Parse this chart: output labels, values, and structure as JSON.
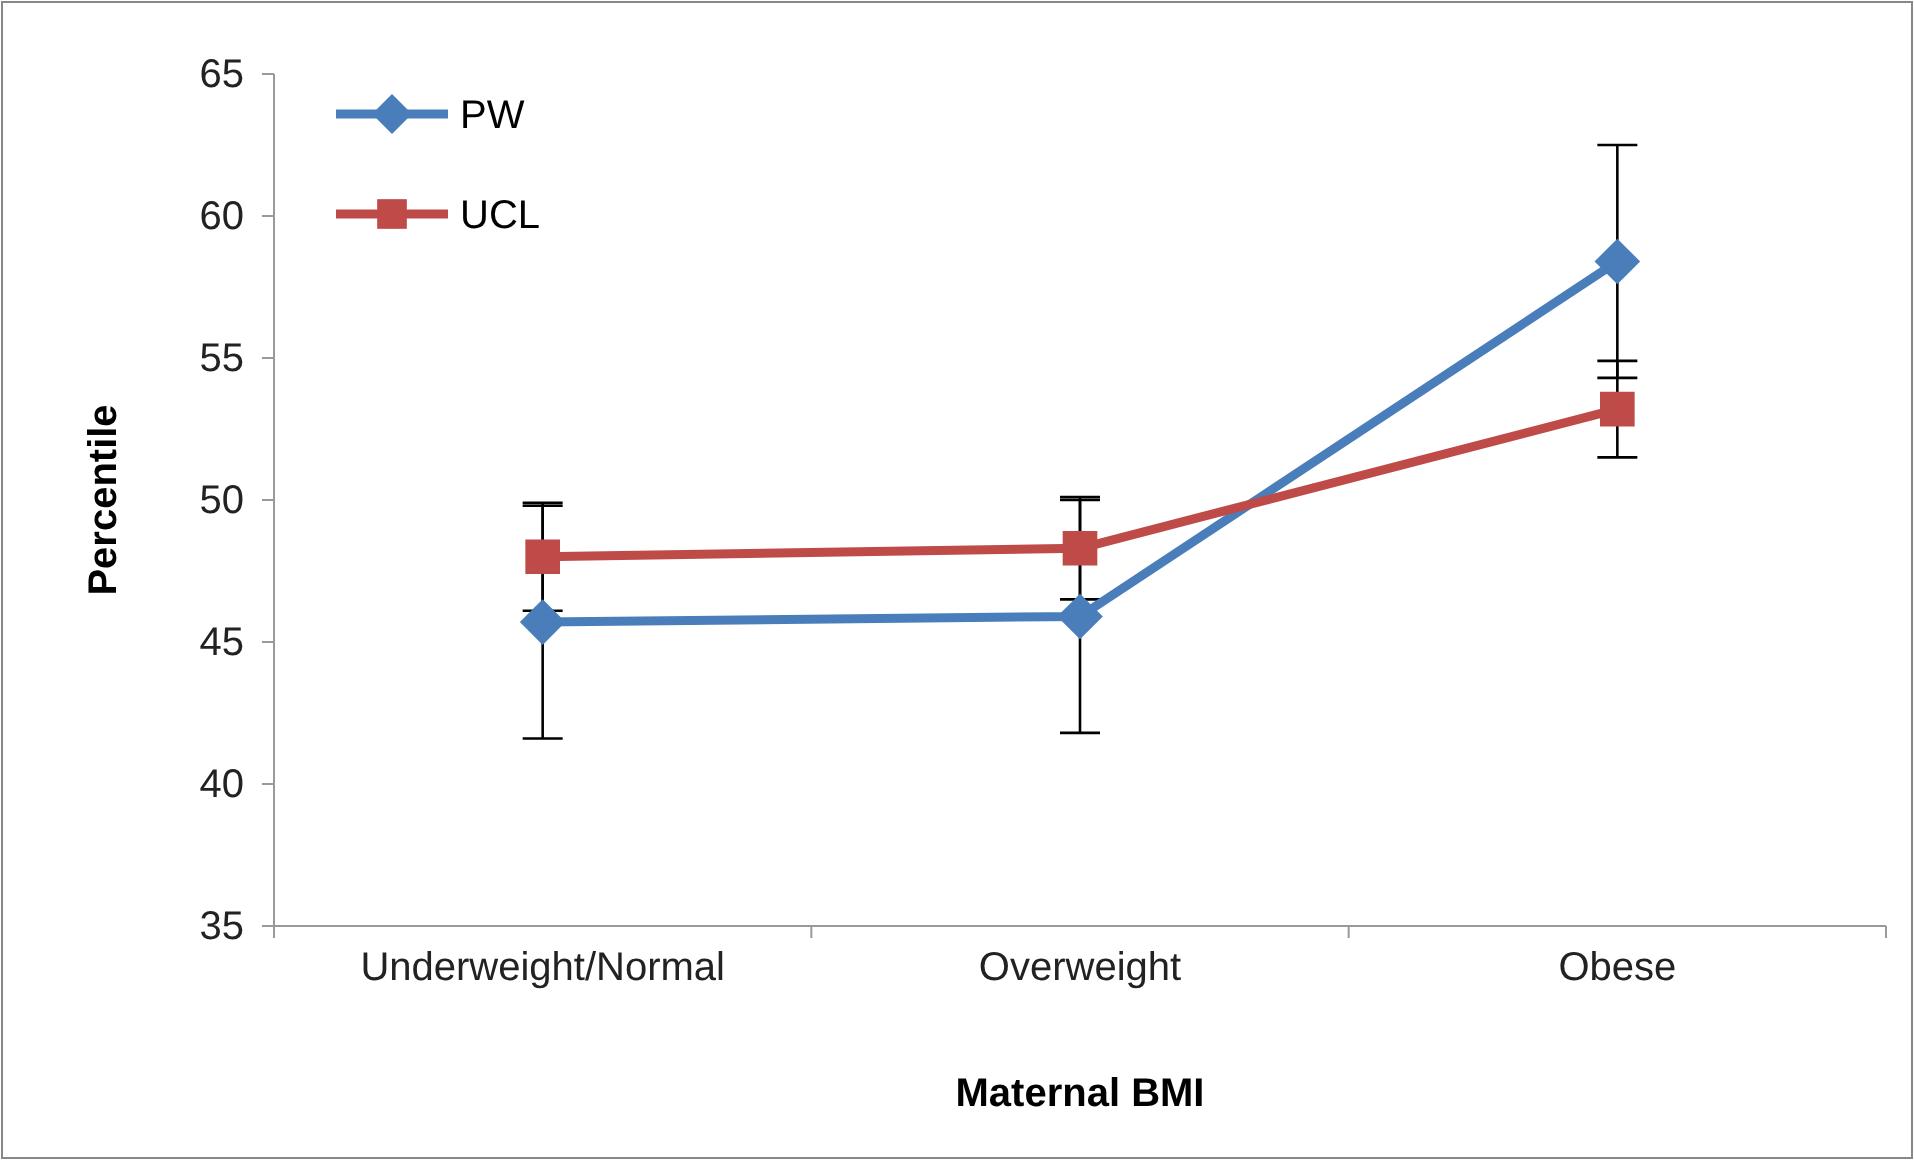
{
  "chart_data": {
    "type": "line",
    "xlabel": "Maternal BMI",
    "ylabel": "Percentile",
    "categories": [
      "Underweight/Normal",
      "Overweight",
      "Obese"
    ],
    "series": [
      {
        "name": "PW",
        "color": "#4a7ebb",
        "values": [
          45.7,
          45.9,
          58.4
        ],
        "errors": [
          4.1,
          4.1,
          4.1
        ],
        "marker": "diamond"
      },
      {
        "name": "UCL",
        "color": "#be4b48",
        "values": [
          48.0,
          48.3,
          53.2
        ],
        "errors": [
          1.9,
          1.8,
          1.7
        ],
        "marker": "square"
      }
    ],
    "ylim": [
      35,
      65
    ],
    "yticks": [
      35,
      40,
      45,
      50,
      55,
      60,
      65
    ],
    "grid": false,
    "legend": "top left",
    "line_style": "solid"
  }
}
